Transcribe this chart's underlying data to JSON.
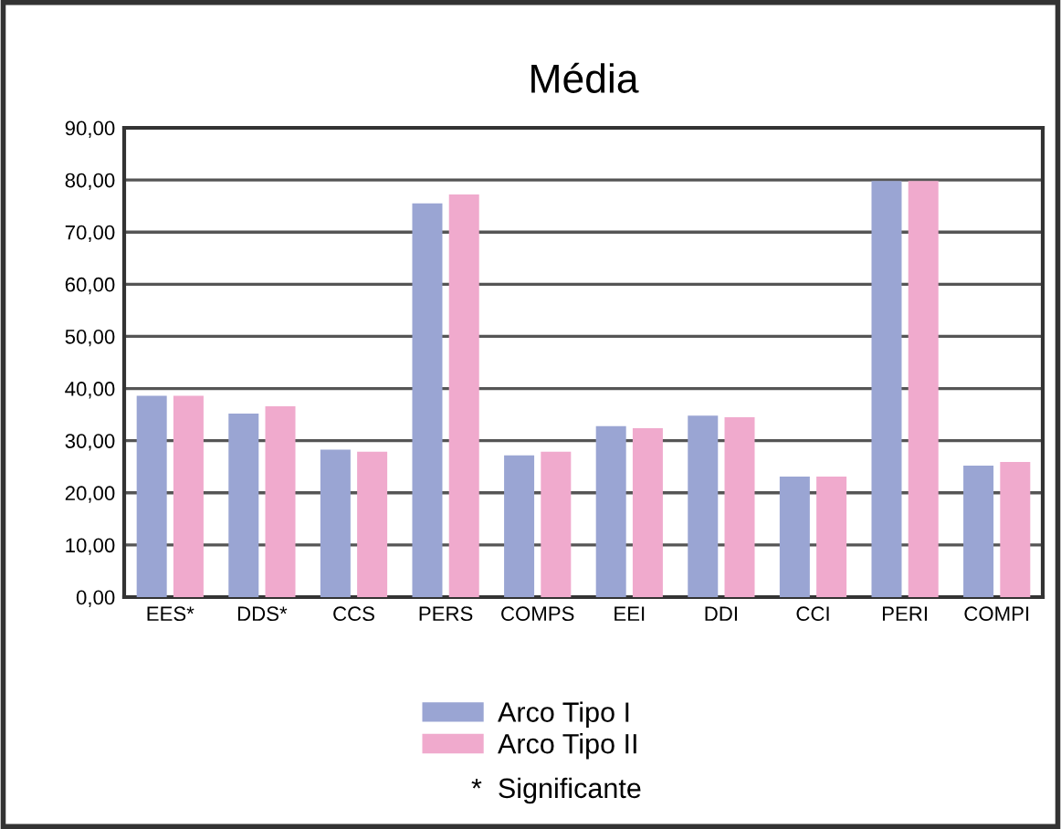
{
  "chart_data": {
    "type": "bar",
    "title": "Média",
    "categories": [
      "EES*",
      "DDS*",
      "CCS",
      "PERS",
      "COMPS",
      "EEI",
      "DDI",
      "CCI",
      "PERI",
      "COMPI"
    ],
    "series": [
      {
        "name": "Arco Tipo I",
        "color": "#9aa5d3",
        "values": [
          38.6,
          35.2,
          28.3,
          75.5,
          27.2,
          32.8,
          34.8,
          23.1,
          79.8,
          25.2
        ]
      },
      {
        "name": "Arco Tipo II",
        "color": "#f0aacd",
        "values": [
          38.6,
          36.6,
          27.9,
          77.2,
          27.9,
          32.4,
          34.5,
          23.1,
          79.8,
          25.9
        ]
      }
    ],
    "ylim": [
      0,
      90
    ],
    "yticks": [
      {
        "value": 0,
        "label": "0,00"
      },
      {
        "value": 10,
        "label": "10,00"
      },
      {
        "value": 20,
        "label": "20,00"
      },
      {
        "value": 30,
        "label": "30,00"
      },
      {
        "value": 40,
        "label": "40,00"
      },
      {
        "value": 50,
        "label": "50,00"
      },
      {
        "value": 60,
        "label": "60,00"
      },
      {
        "value": 70,
        "label": "70,00"
      },
      {
        "value": 80,
        "label": "80,00"
      },
      {
        "value": 90,
        "label": "90,00"
      }
    ],
    "grid": "y",
    "legend": "bottom",
    "annotations": [
      "*  Significante"
    ]
  }
}
